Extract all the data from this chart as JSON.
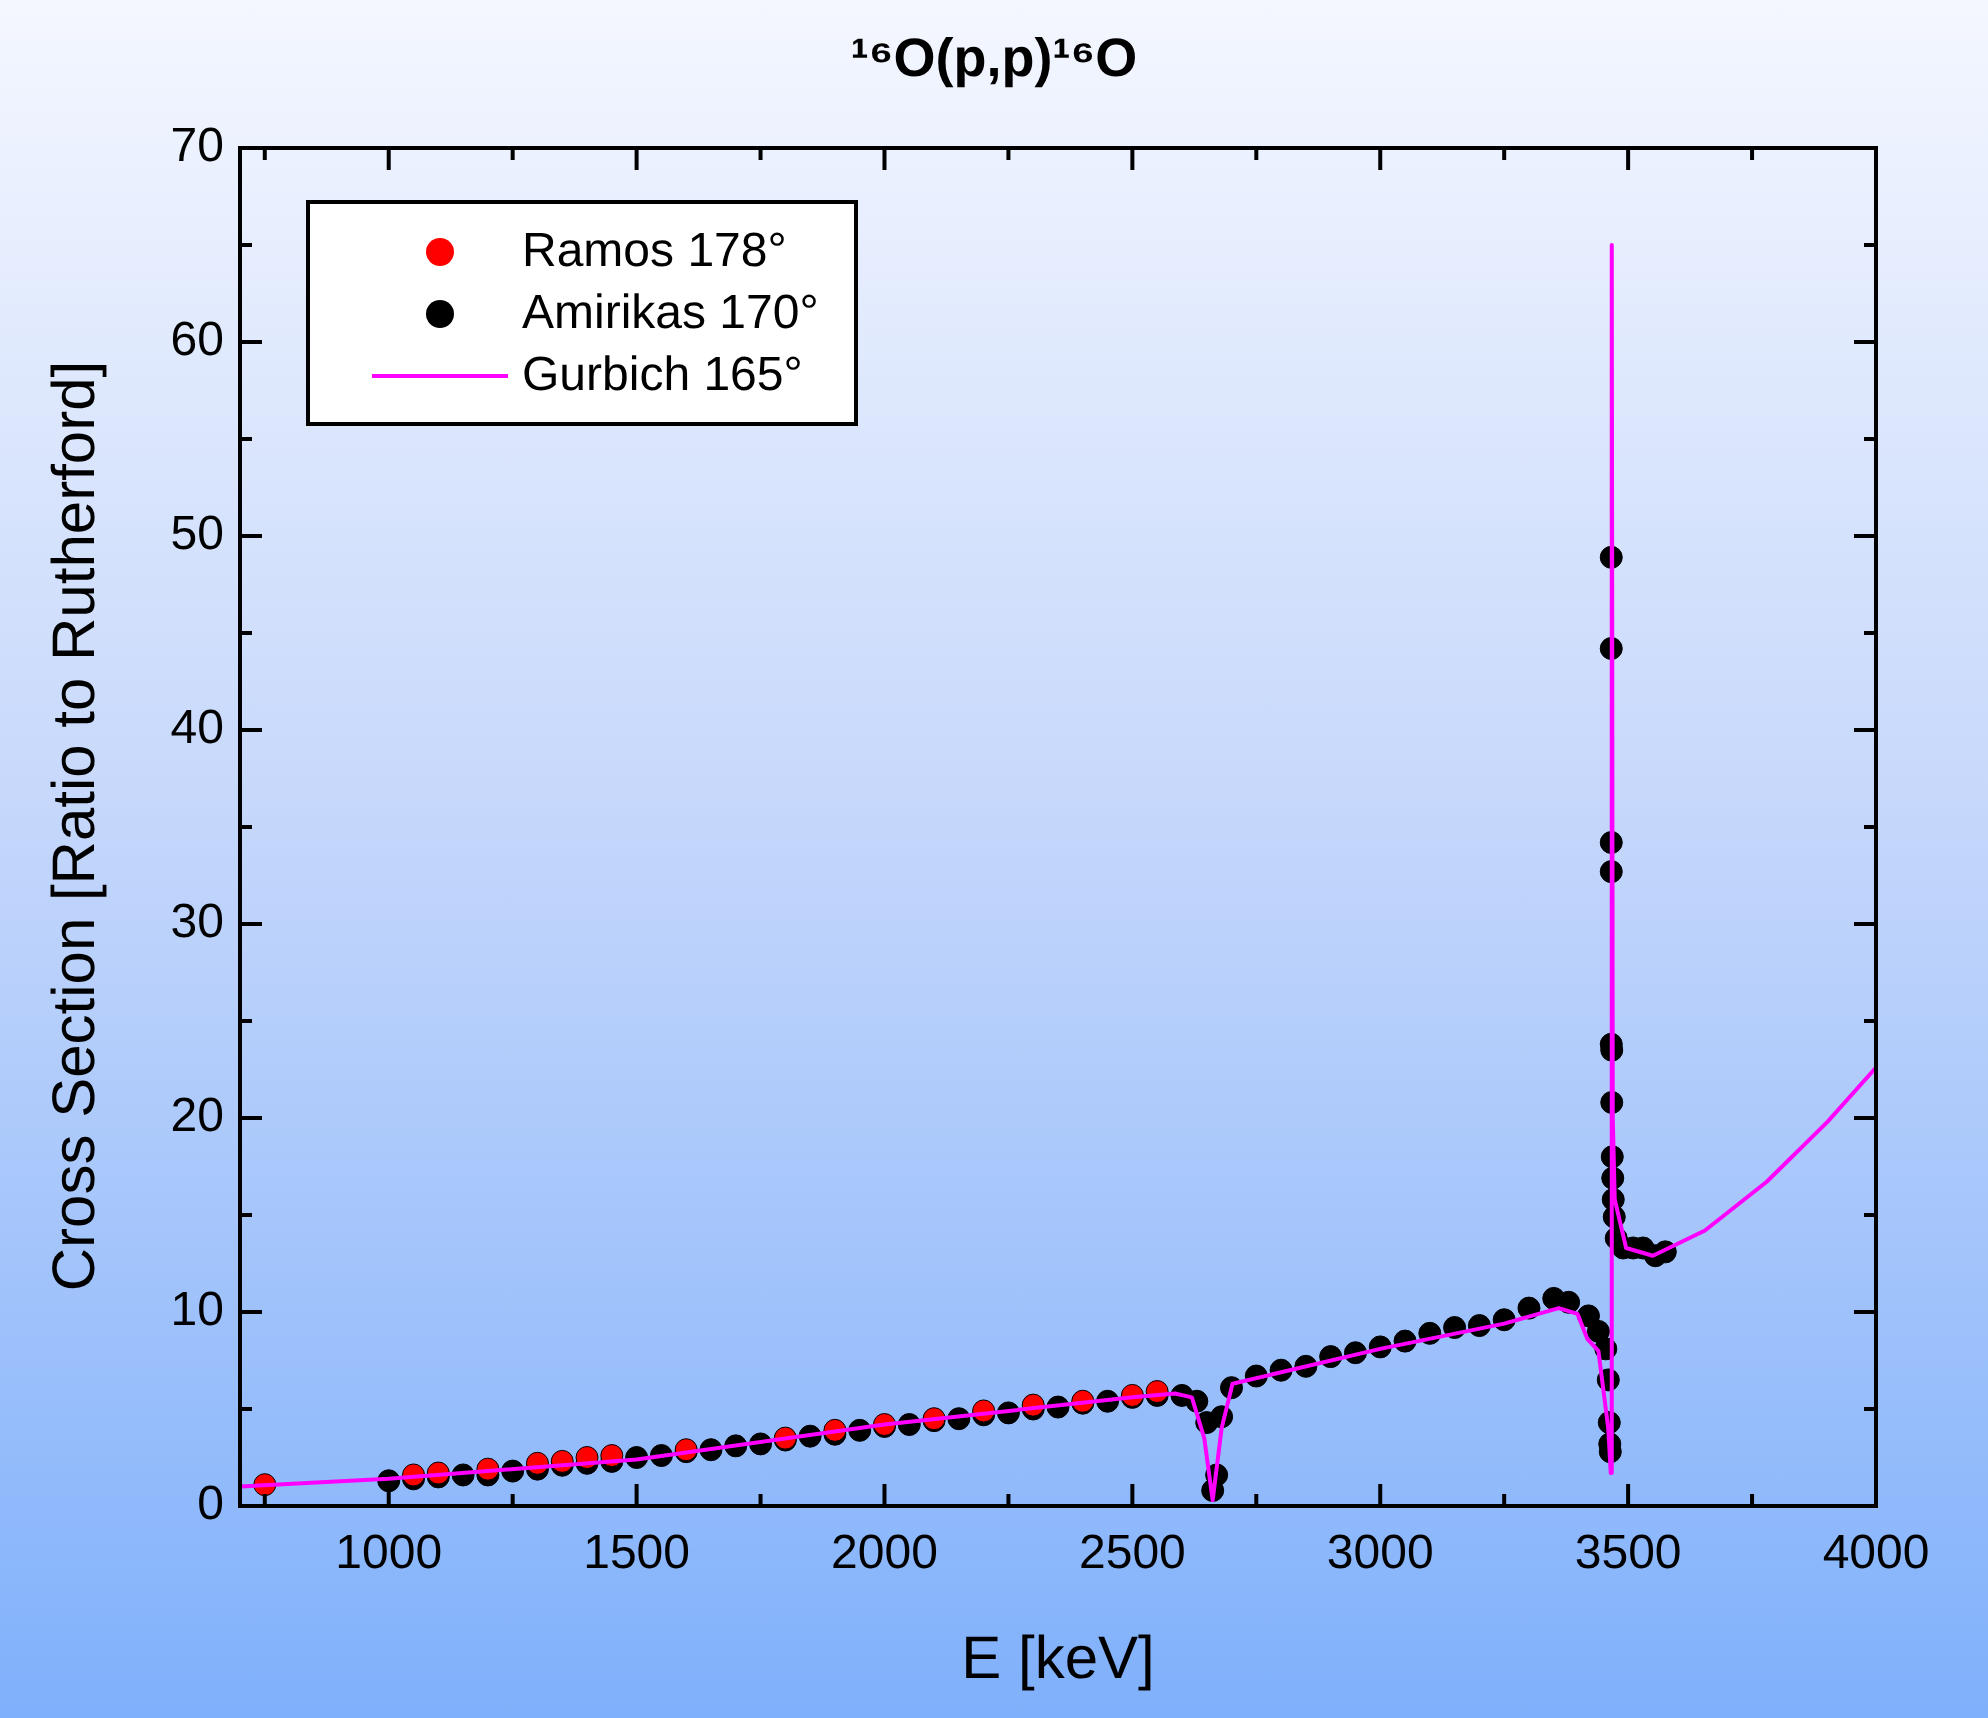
{
  "chart_data": {
    "type": "scatter",
    "title": "¹⁶O(p,p)¹⁶O",
    "xlabel": "E [keV]",
    "ylabel": "Cross Section [Ratio to Rutherford]",
    "xlim": [
      700,
      4000
    ],
    "xticks": [
      {
        "value": 750,
        "label": null
      },
      1000,
      {
        "value": 1250,
        "label": null
      },
      1500,
      {
        "value": 1750,
        "label": null
      },
      2000,
      {
        "value": 2250,
        "label": null
      },
      2500,
      {
        "value": 2750,
        "label": null
      },
      3000,
      {
        "value": 3250,
        "label": null
      },
      3500,
      {
        "value": 3750,
        "label": null
      },
      4000
    ],
    "ylim": [
      0,
      70
    ],
    "yticks": [
      0,
      {
        "value": 5,
        "label": null
      },
      10,
      {
        "value": 15,
        "label": null
      },
      20,
      {
        "value": 25,
        "label": null
      },
      30,
      {
        "value": 35,
        "label": null
      },
      40,
      {
        "value": 45,
        "label": null
      },
      50,
      {
        "value": 55,
        "label": null
      },
      60,
      {
        "value": 65,
        "label": null
      },
      70
    ],
    "grid": false,
    "legend": "top left",
    "marker": "circle",
    "series": [
      {
        "name": "Ramos 178°",
        "color": "#ff0000",
        "x": [
          750,
          1050,
          1100,
          1200,
          1300,
          1350,
          1400,
          1450,
          1600,
          1800,
          1900,
          2000,
          2100,
          2200,
          2300,
          2400,
          2500,
          2550
        ],
        "values": [
          1.1,
          1.6,
          1.7,
          1.9,
          2.2,
          2.3,
          2.5,
          2.6,
          2.9,
          3.5,
          3.9,
          4.2,
          4.5,
          4.9,
          5.2,
          5.4,
          5.7,
          5.9
        ]
      },
      {
        "name": "Amirikas 170°",
        "color": "#000000",
        "x": [
          1000,
          1050,
          1100,
          1150,
          1200,
          1250,
          1300,
          1350,
          1400,
          1450,
          1500,
          1550,
          1600,
          1650,
          1700,
          1750,
          1800,
          1850,
          1900,
          1950,
          2000,
          2050,
          2100,
          2150,
          2200,
          2250,
          2300,
          2350,
          2400,
          2450,
          2500,
          2550,
          2600,
          2630,
          2650,
          2662,
          2670,
          2680,
          2700,
          2750,
          2800,
          2850,
          2900,
          2950,
          3000,
          3050,
          3100,
          3150,
          3200,
          3250,
          3300,
          3350,
          3380,
          3420,
          3440,
          3455,
          3460,
          3462,
          3463,
          3464,
          3466,
          3466,
          3466,
          3466,
          3466,
          3467,
          3467,
          3468,
          3469,
          3470,
          3472,
          3476,
          3490,
          3510,
          3530,
          3555,
          3575
        ],
        "values": [
          1.3,
          1.4,
          1.5,
          1.6,
          1.6,
          1.8,
          1.9,
          2.1,
          2.2,
          2.3,
          2.5,
          2.6,
          2.8,
          2.9,
          3.1,
          3.2,
          3.4,
          3.6,
          3.7,
          3.9,
          4.1,
          4.2,
          4.4,
          4.5,
          4.7,
          4.8,
          5.0,
          5.1,
          5.3,
          5.4,
          5.6,
          5.7,
          5.7,
          5.4,
          4.3,
          0.8,
          1.6,
          4.6,
          6.1,
          6.7,
          7.0,
          7.2,
          7.7,
          7.9,
          8.2,
          8.5,
          8.9,
          9.2,
          9.3,
          9.6,
          10.2,
          10.7,
          10.5,
          9.8,
          9.0,
          8.1,
          6.5,
          4.3,
          3.2,
          2.8,
          48.9,
          44.2,
          34.2,
          32.7,
          23.8,
          23.5,
          20.8,
          18.0,
          16.9,
          15.8,
          14.9,
          13.8,
          13.3,
          13.3,
          13.3,
          12.9,
          13.1
        ]
      },
      {
        "name": "Gurbich 165°",
        "type": "line",
        "marker": "none",
        "color": "#ff00ff",
        "x": [
          700,
          1000,
          1500,
          2000,
          2500,
          2586,
          2620,
          2645,
          2662,
          2680,
          2702,
          3000,
          3250,
          3360,
          3398,
          3418,
          3440,
          3460,
          3465,
          3467,
          3469,
          3473,
          3496,
          3550,
          3655,
          3779,
          3902,
          4000
        ],
        "values": [
          1.0,
          1.4,
          2.4,
          4.2,
          5.6,
          5.8,
          5.6,
          3.5,
          0.3,
          4.0,
          6.3,
          8.1,
          9.4,
          10.2,
          9.9,
          8.6,
          8.0,
          4.0,
          1.7,
          65.0,
          20.0,
          15.8,
          13.3,
          12.9,
          14.2,
          16.7,
          19.8,
          22.6
        ]
      }
    ]
  }
}
